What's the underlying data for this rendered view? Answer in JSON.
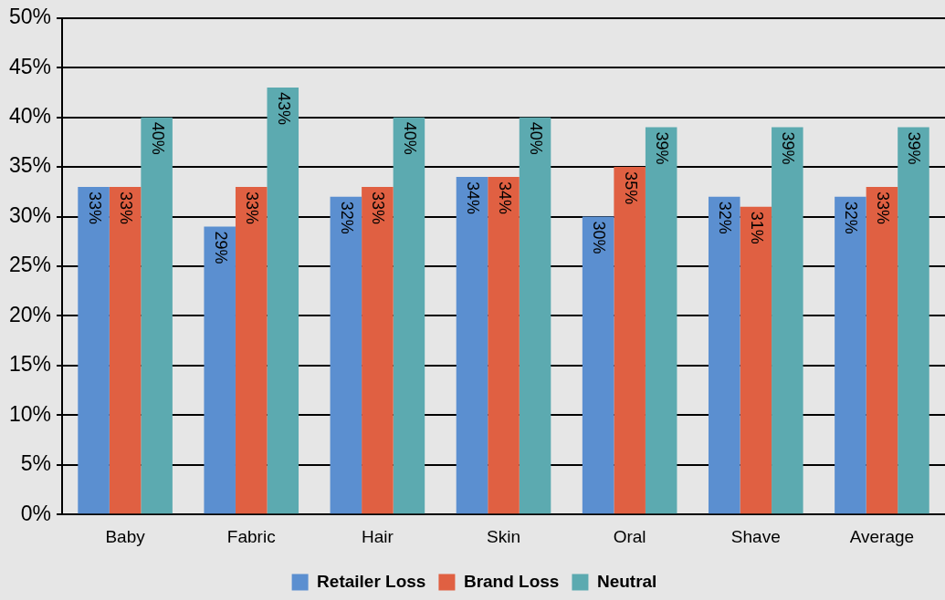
{
  "chart_data": {
    "type": "bar",
    "categories": [
      "Baby",
      "Fabric",
      "Hair",
      "Skin",
      "Oral",
      "Shave",
      "Average"
    ],
    "series": [
      {
        "name": "Retailer Loss",
        "color": "#5b8fd0",
        "values": [
          33,
          29,
          32,
          34,
          30,
          32,
          32
        ],
        "value_labels": [
          "33%",
          "29%",
          "32%",
          "34%",
          "30%",
          "32%",
          "32%"
        ]
      },
      {
        "name": "Brand Loss",
        "color": "#e06042",
        "values": [
          33,
          33,
          33,
          34,
          35,
          31,
          33
        ],
        "value_labels": [
          "33%",
          "33%",
          "33%",
          "34%",
          "35%",
          "31%",
          "33%"
        ]
      },
      {
        "name": "Neutral",
        "color": "#5caab0",
        "values": [
          40,
          43,
          40,
          40,
          39,
          39,
          39
        ],
        "value_labels": [
          "40%",
          "43%",
          "40%",
          "40%",
          "39%",
          "39%",
          "39%"
        ]
      }
    ],
    "ylim": [
      0,
      50
    ],
    "yticks": [
      {
        "value": 0,
        "label": "0%"
      },
      {
        "value": 5,
        "label": "5%"
      },
      {
        "value": 10,
        "label": "10%"
      },
      {
        "value": 15,
        "label": "15%"
      },
      {
        "value": 20,
        "label": "20%"
      },
      {
        "value": 25,
        "label": "25%"
      },
      {
        "value": 30,
        "label": "30%"
      },
      {
        "value": 35,
        "label": "35%"
      },
      {
        "value": 40,
        "label": "40%"
      },
      {
        "value": 45,
        "label": "45%"
      },
      {
        "value": 50,
        "label": "50%"
      }
    ],
    "grid": "y",
    "legend": "bottom"
  }
}
